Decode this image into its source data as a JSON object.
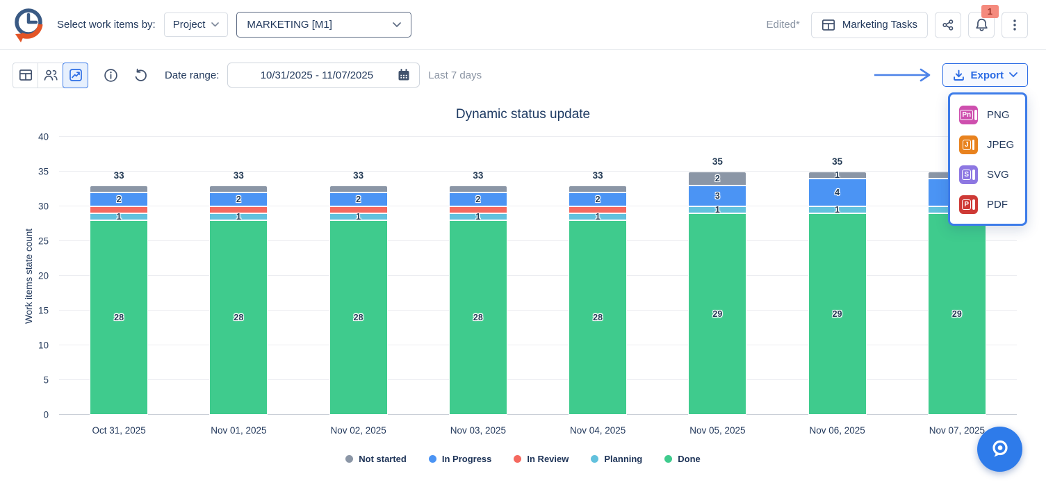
{
  "header": {
    "select_label": "Select work items by:",
    "mode_dropdown": {
      "value": "Project"
    },
    "project_dropdown": {
      "value": "MARKETING [M1]"
    },
    "edited_label": "Edited*",
    "board_button_label": "Marketing Tasks",
    "notification_count": "1"
  },
  "toolbar": {
    "date_range_label": "Date range:",
    "date_range_value": "10/31/2025 - 11/07/2025",
    "period_label": "Last 7 days",
    "export_label": "Export"
  },
  "export_menu": {
    "items": [
      {
        "label": "PNG",
        "icon_letter": "Pn",
        "color": "#ce4fae"
      },
      {
        "label": "JPEG",
        "icon_letter": "J",
        "color": "#e8821e"
      },
      {
        "label": "SVG",
        "icon_letter": "S",
        "color": "#8d77e2"
      },
      {
        "label": "PDF",
        "icon_letter": "P",
        "color": "#ce3a36"
      }
    ]
  },
  "chart_data": {
    "type": "stacked-bar",
    "title": "Dynamic status update",
    "ylabel": "Work items state count",
    "ylim": [
      0,
      40
    ],
    "yticks": [
      0,
      5,
      10,
      15,
      20,
      25,
      30,
      35,
      40
    ],
    "grid": true,
    "legend_position": "bottom",
    "categories": [
      "Oct 31, 2025",
      "Nov 01, 2025",
      "Nov 02, 2025",
      "Nov 03, 2025",
      "Nov 04, 2025",
      "Nov 05, 2025",
      "Nov 06, 2025",
      "Nov 07, 2025"
    ],
    "totals": [
      33,
      33,
      33,
      33,
      33,
      35,
      35,
      35
    ],
    "stack_order_top_to_bottom": [
      "Not started",
      "In Progress",
      "In Review",
      "Planning",
      "Done"
    ],
    "series": [
      {
        "name": "Not started",
        "color": "#8b96a6",
        "values": [
          1,
          1,
          1,
          1,
          1,
          2,
          1,
          1
        ],
        "labels": [
          "",
          "",
          "",
          "",
          "",
          "2",
          "1",
          "1"
        ]
      },
      {
        "name": "In Progress",
        "color": "#4b94f4",
        "values": [
          2,
          2,
          2,
          2,
          2,
          3,
          4,
          4
        ],
        "labels": [
          "2",
          "2",
          "2",
          "2",
          "2",
          "3",
          "4",
          "4"
        ]
      },
      {
        "name": "In Review",
        "color": "#f5695f",
        "values": [
          1,
          1,
          1,
          1,
          1,
          0,
          0,
          0
        ],
        "labels": [
          "",
          "",
          "",
          "",
          "",
          "",
          "",
          ""
        ]
      },
      {
        "name": "Planning",
        "color": "#62c1dd",
        "values": [
          1,
          1,
          1,
          1,
          1,
          1,
          1,
          1
        ],
        "labels": [
          "1",
          "1",
          "1",
          "1",
          "1",
          "1",
          "1",
          "1"
        ]
      },
      {
        "name": "Done",
        "color": "#3fcb8d",
        "values": [
          28,
          28,
          28,
          28,
          28,
          29,
          29,
          29
        ],
        "labels": [
          "28",
          "28",
          "28",
          "28",
          "28",
          "29",
          "29",
          "29"
        ]
      }
    ]
  },
  "icons": {
    "logo": "clock-with-orange-curved-arrow",
    "table-view-icon": "table-grid",
    "team-view-icon": "two-people",
    "chart-view-icon": "line-chart-in-box",
    "info-icon": "circle-i",
    "refresh-icon": "counterclockwise-arrow",
    "calendar-icon": "calendar-grid",
    "board-icon": "table-grid",
    "share-icon": "share-nodes",
    "bell-icon": "notification-bell",
    "kebab-icon": "vertical-three-dots",
    "download-icon": "download-tray",
    "chevron-down-icon": "chevron-down",
    "pointer-arrow": "long-right-arrow",
    "assistant-fab-icon": "magnifier-bubble"
  },
  "colors": {
    "accent_blue": "#2e6ee5",
    "dropdown_border": "#3d7ce9",
    "navy_text": "#22395c",
    "muted_text": "#8a94a3",
    "badge_bg": "#f58a7d",
    "fab_bg": "#2e7bea"
  }
}
